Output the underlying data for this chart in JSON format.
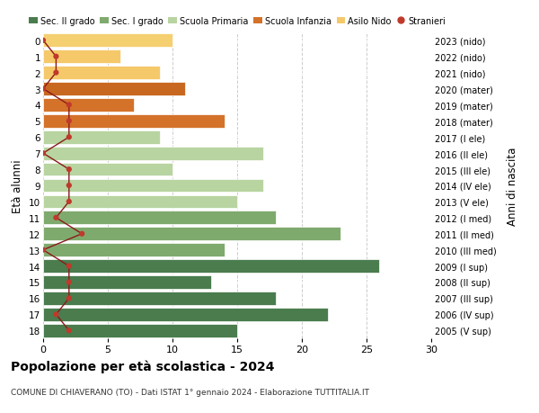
{
  "ages": [
    18,
    17,
    16,
    15,
    14,
    13,
    12,
    11,
    10,
    9,
    8,
    7,
    6,
    5,
    4,
    3,
    2,
    1,
    0
  ],
  "years": [
    "2005 (V sup)",
    "2006 (IV sup)",
    "2007 (III sup)",
    "2008 (II sup)",
    "2009 (I sup)",
    "2010 (III med)",
    "2011 (II med)",
    "2012 (I med)",
    "2013 (V ele)",
    "2014 (IV ele)",
    "2015 (III ele)",
    "2016 (II ele)",
    "2017 (I ele)",
    "2018 (mater)",
    "2019 (mater)",
    "2020 (mater)",
    "2021 (nido)",
    "2022 (nido)",
    "2023 (nido)"
  ],
  "bar_values": [
    15,
    22,
    18,
    13,
    26,
    14,
    23,
    18,
    15,
    17,
    10,
    17,
    9,
    14,
    7,
    11,
    9,
    6,
    10
  ],
  "bar_colors": [
    "#4a7c4e",
    "#4a7c4e",
    "#4a7c4e",
    "#4a7c4e",
    "#4a7c4e",
    "#7faa6e",
    "#7faa6e",
    "#7faa6e",
    "#b8d4a0",
    "#b8d4a0",
    "#b8d4a0",
    "#b8d4a0",
    "#b8d4a0",
    "#d4722a",
    "#d4722a",
    "#c86820",
    "#f5c96a",
    "#f5c96a",
    "#f5d070"
  ],
  "stranieri_values": [
    2,
    1,
    2,
    2,
    2,
    0,
    3,
    1,
    2,
    2,
    2,
    0,
    2,
    2,
    2,
    0,
    1,
    1,
    0
  ],
  "legend_labels": [
    "Sec. II grado",
    "Sec. I grado",
    "Scuola Primaria",
    "Scuola Infanzia",
    "Asilo Nido",
    "Stranieri"
  ],
  "legend_colors": [
    "#4a7c4e",
    "#7faa6e",
    "#b8d4a0",
    "#d4722a",
    "#f5c96a",
    "#c0392b"
  ],
  "title": "Popolazione per età scolastica - 2024",
  "subtitle": "COMUNE DI CHIAVERANO (TO) - Dati ISTAT 1° gennaio 2024 - Elaborazione TUTTITALIA.IT",
  "ylabel_left": "Età alunni",
  "ylabel_right": "Anni di nascita",
  "xlim": [
    0,
    30
  ],
  "xticks": [
    0,
    5,
    10,
    15,
    20,
    25,
    30
  ],
  "grid_color": "#cccccc"
}
